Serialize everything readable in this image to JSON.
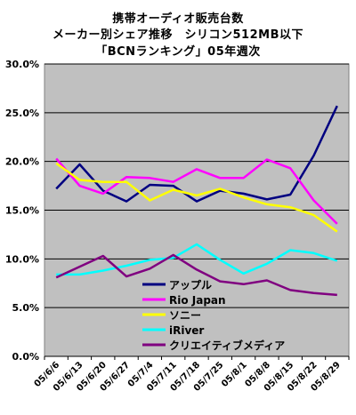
{
  "chart_data": {
    "type": "line",
    "title": [
      "携帯オーディオ販売台数",
      "メーカー別シェア推移　シリコン512MB以下",
      "「BCNランキング」05年週次"
    ],
    "xlabel": "",
    "ylabel": "",
    "x": [
      "05/6/6",
      "05/6/13",
      "05/6/20",
      "05/6/27",
      "05/7/4",
      "05/7/11",
      "05/7/18",
      "05/7/25",
      "05/8/1",
      "05/8/8",
      "05/8/15",
      "05/8/22",
      "05/8/29"
    ],
    "yticks": [
      "30.0%",
      "25.0%",
      "20.0%",
      "15.0%",
      "10.0%",
      "5.0%",
      "0.0%"
    ],
    "ylim": [
      0,
      30
    ],
    "legend_position": "bottom-center inside plot",
    "plot_background": "#c0c0c0",
    "gridlines": "horizontal",
    "series": [
      {
        "name": "アップル",
        "color": "#000080",
        "values": [
          17.2,
          19.7,
          17.0,
          15.9,
          17.6,
          17.5,
          15.9,
          17.0,
          16.7,
          16.1,
          16.6,
          20.6,
          25.7
        ]
      },
      {
        "name": "Rio Japan",
        "color": "#ff00ff",
        "values": [
          20.3,
          17.5,
          16.7,
          18.4,
          18.3,
          17.9,
          19.2,
          18.3,
          18.3,
          20.2,
          19.3,
          16.0,
          13.6
        ]
      },
      {
        "name": "ソニー",
        "color": "#ffff00",
        "values": [
          19.8,
          18.1,
          17.9,
          17.9,
          16.0,
          17.1,
          16.5,
          17.2,
          16.3,
          15.6,
          15.3,
          14.5,
          12.8
        ]
      },
      {
        "name": "iRiver",
        "color": "#00ffff",
        "values": [
          8.4,
          8.4,
          8.8,
          9.3,
          9.9,
          10.1,
          11.5,
          9.9,
          8.5,
          9.5,
          10.9,
          10.6,
          9.8
        ]
      },
      {
        "name": "クリエイティブメディア",
        "color": "#800080",
        "values": [
          8.1,
          9.2,
          10.3,
          8.2,
          9.0,
          10.4,
          8.9,
          7.7,
          7.4,
          7.8,
          6.8,
          6.5,
          6.3
        ]
      }
    ]
  }
}
